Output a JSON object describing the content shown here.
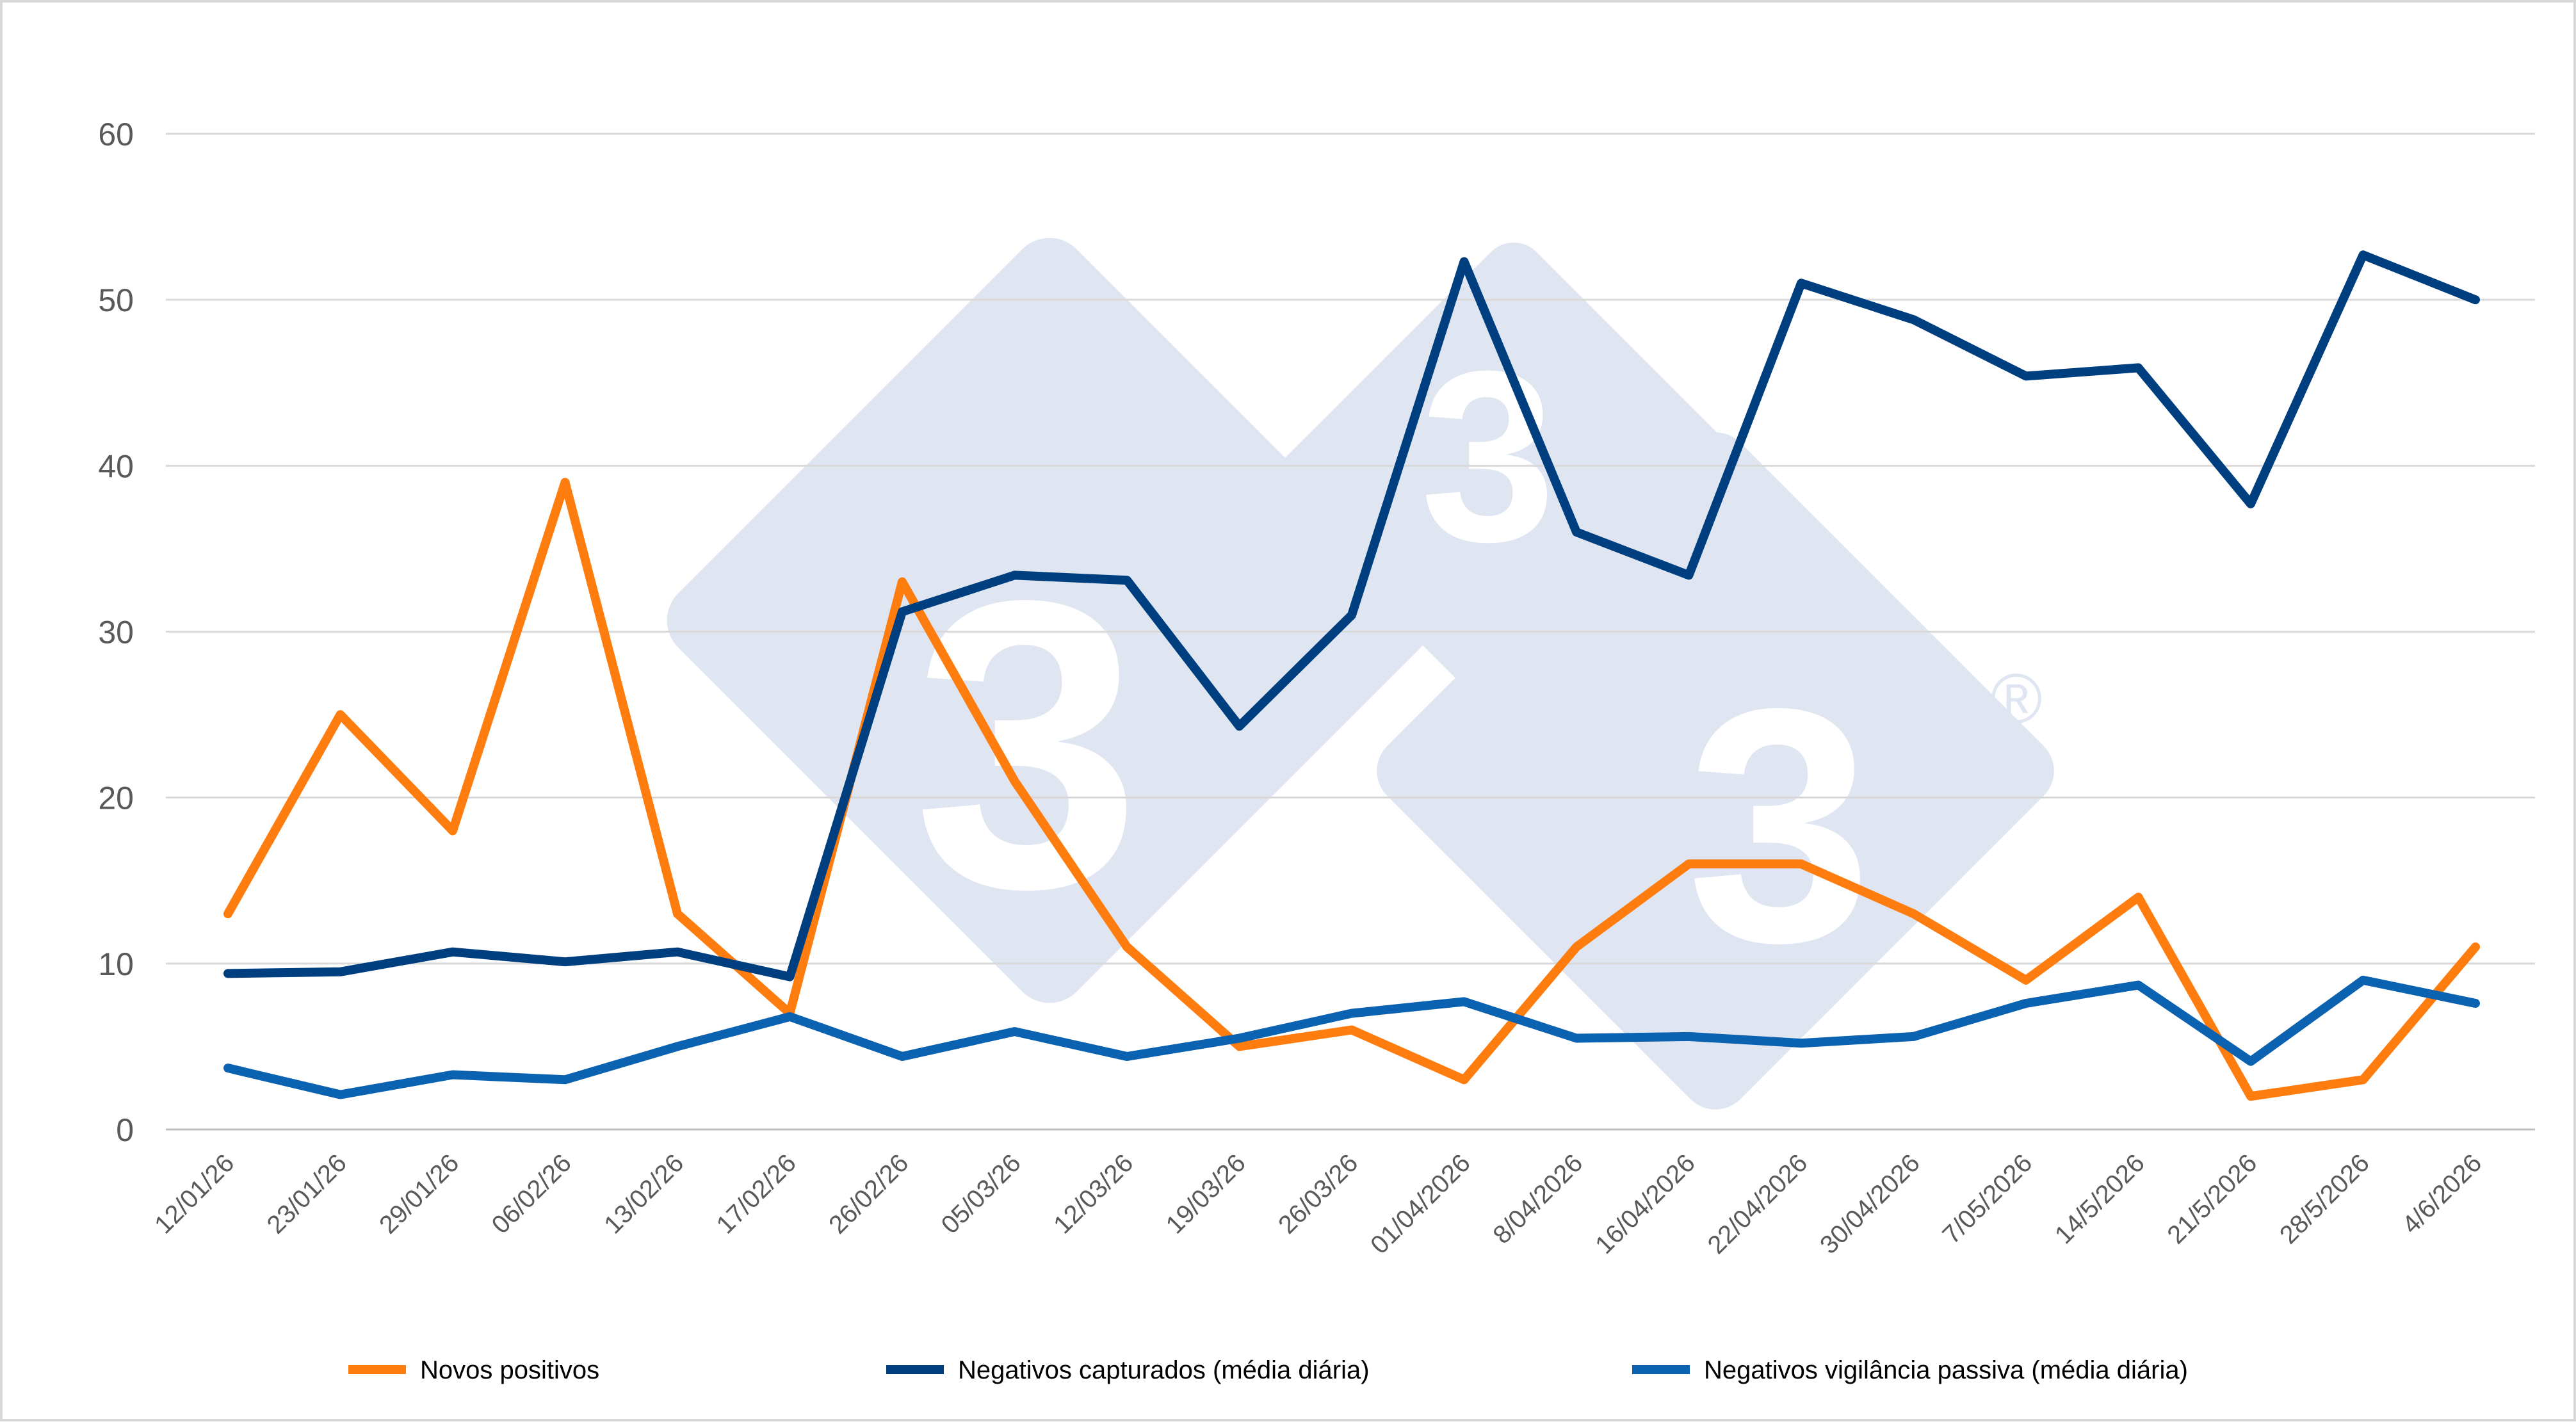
{
  "chart_data": {
    "type": "line",
    "title": "",
    "xlabel": "",
    "ylabel": "",
    "ylim": [
      0,
      60
    ],
    "yticks": [
      0,
      10,
      20,
      30,
      40,
      50,
      60
    ],
    "grid": true,
    "legend_position": "bottom",
    "categories": [
      "12/01/26",
      "23/01/26",
      "29/01/26",
      "06/02/26",
      "13/02/26",
      "17/02/26",
      "26/02/26",
      "05/03/26",
      "12/03/26",
      "19/03/26",
      "26/03/26",
      "01/04/2026",
      "8/04/2026",
      "16/04/2026",
      "22/04/2026",
      "30/04/2026",
      "7/05/2026",
      "14/5/2026",
      "21/5/2026",
      "28/5/2026",
      "4/6/2026"
    ],
    "series": [
      {
        "name": "Novos positivos",
        "color": "#ff7c0e",
        "values": [
          13,
          25,
          18,
          39,
          13,
          7,
          33,
          21,
          11,
          5,
          6,
          3,
          11,
          16,
          16,
          13,
          9,
          14,
          2,
          3,
          11
        ]
      },
      {
        "name": "Negativos capturados (média diária)",
        "color": "#003f7f",
        "values": [
          9.4,
          9.5,
          10.7,
          10.1,
          10.7,
          9.2,
          31.2,
          33.4,
          33.1,
          24.3,
          31,
          52.3,
          36,
          33.4,
          51,
          48.8,
          45.4,
          45.9,
          37.7,
          52.7,
          50
        ]
      },
      {
        "name": "Negativos vigilância passiva (média diária)",
        "color": "#0b62b0",
        "values": [
          3.7,
          2.1,
          3.3,
          3,
          5,
          6.8,
          4.4,
          5.9,
          4.4,
          5.5,
          7,
          7.7,
          5.5,
          5.6,
          5.2,
          5.6,
          7.6,
          8.7,
          4.1,
          9,
          7.6
        ]
      }
    ]
  },
  "watermark": {
    "glyph": "3",
    "registered": "®",
    "color": "#dfe6f2"
  }
}
